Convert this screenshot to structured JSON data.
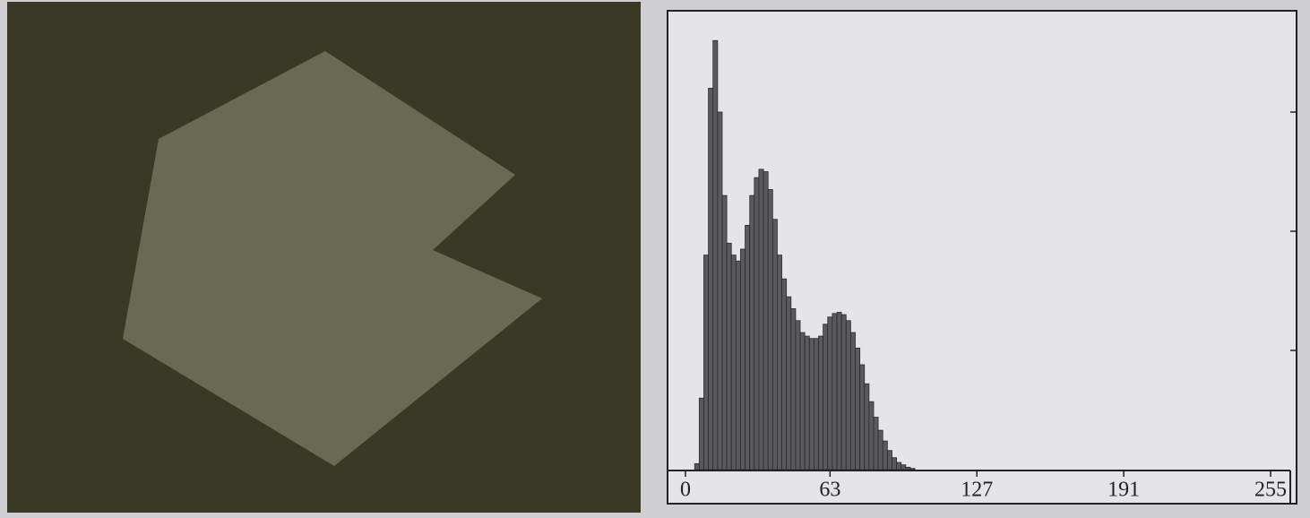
{
  "chart_data": {
    "type": "histogram",
    "bins": [
      0,
      2,
      4,
      6,
      8,
      10,
      12,
      14,
      16,
      18,
      20,
      22,
      24,
      26,
      28,
      30,
      32,
      34,
      36,
      38,
      40,
      42,
      44,
      46,
      48,
      50,
      52,
      54,
      56,
      58,
      60,
      62,
      64,
      66,
      68,
      70,
      72,
      74,
      76,
      78,
      80,
      82,
      84,
      86,
      88,
      90,
      92,
      94,
      96,
      98,
      100,
      102,
      104,
      106,
      108
    ],
    "values": [
      0,
      0,
      0.05,
      0.6,
      1.8,
      3.2,
      3.6,
      3.0,
      2.3,
      1.9,
      1.8,
      1.75,
      1.85,
      2.05,
      2.3,
      2.45,
      2.52,
      2.5,
      2.35,
      2.1,
      1.8,
      1.6,
      1.45,
      1.35,
      1.25,
      1.15,
      1.12,
      1.1,
      1.1,
      1.12,
      1.22,
      1.28,
      1.31,
      1.32,
      1.3,
      1.25,
      1.15,
      1.02,
      0.88,
      0.72,
      0.57,
      0.44,
      0.33,
      0.24,
      0.16,
      0.1,
      0.06,
      0.04,
      0.02,
      0.01,
      0,
      0,
      0,
      0
    ],
    "color": "#5a5a5c",
    "xlim": [
      0,
      255
    ],
    "xticks": [
      0,
      63,
      127,
      191,
      255
    ],
    "ylim": [
      0,
      3.85
    ],
    "yticks": [
      1,
      2,
      3
    ]
  }
}
